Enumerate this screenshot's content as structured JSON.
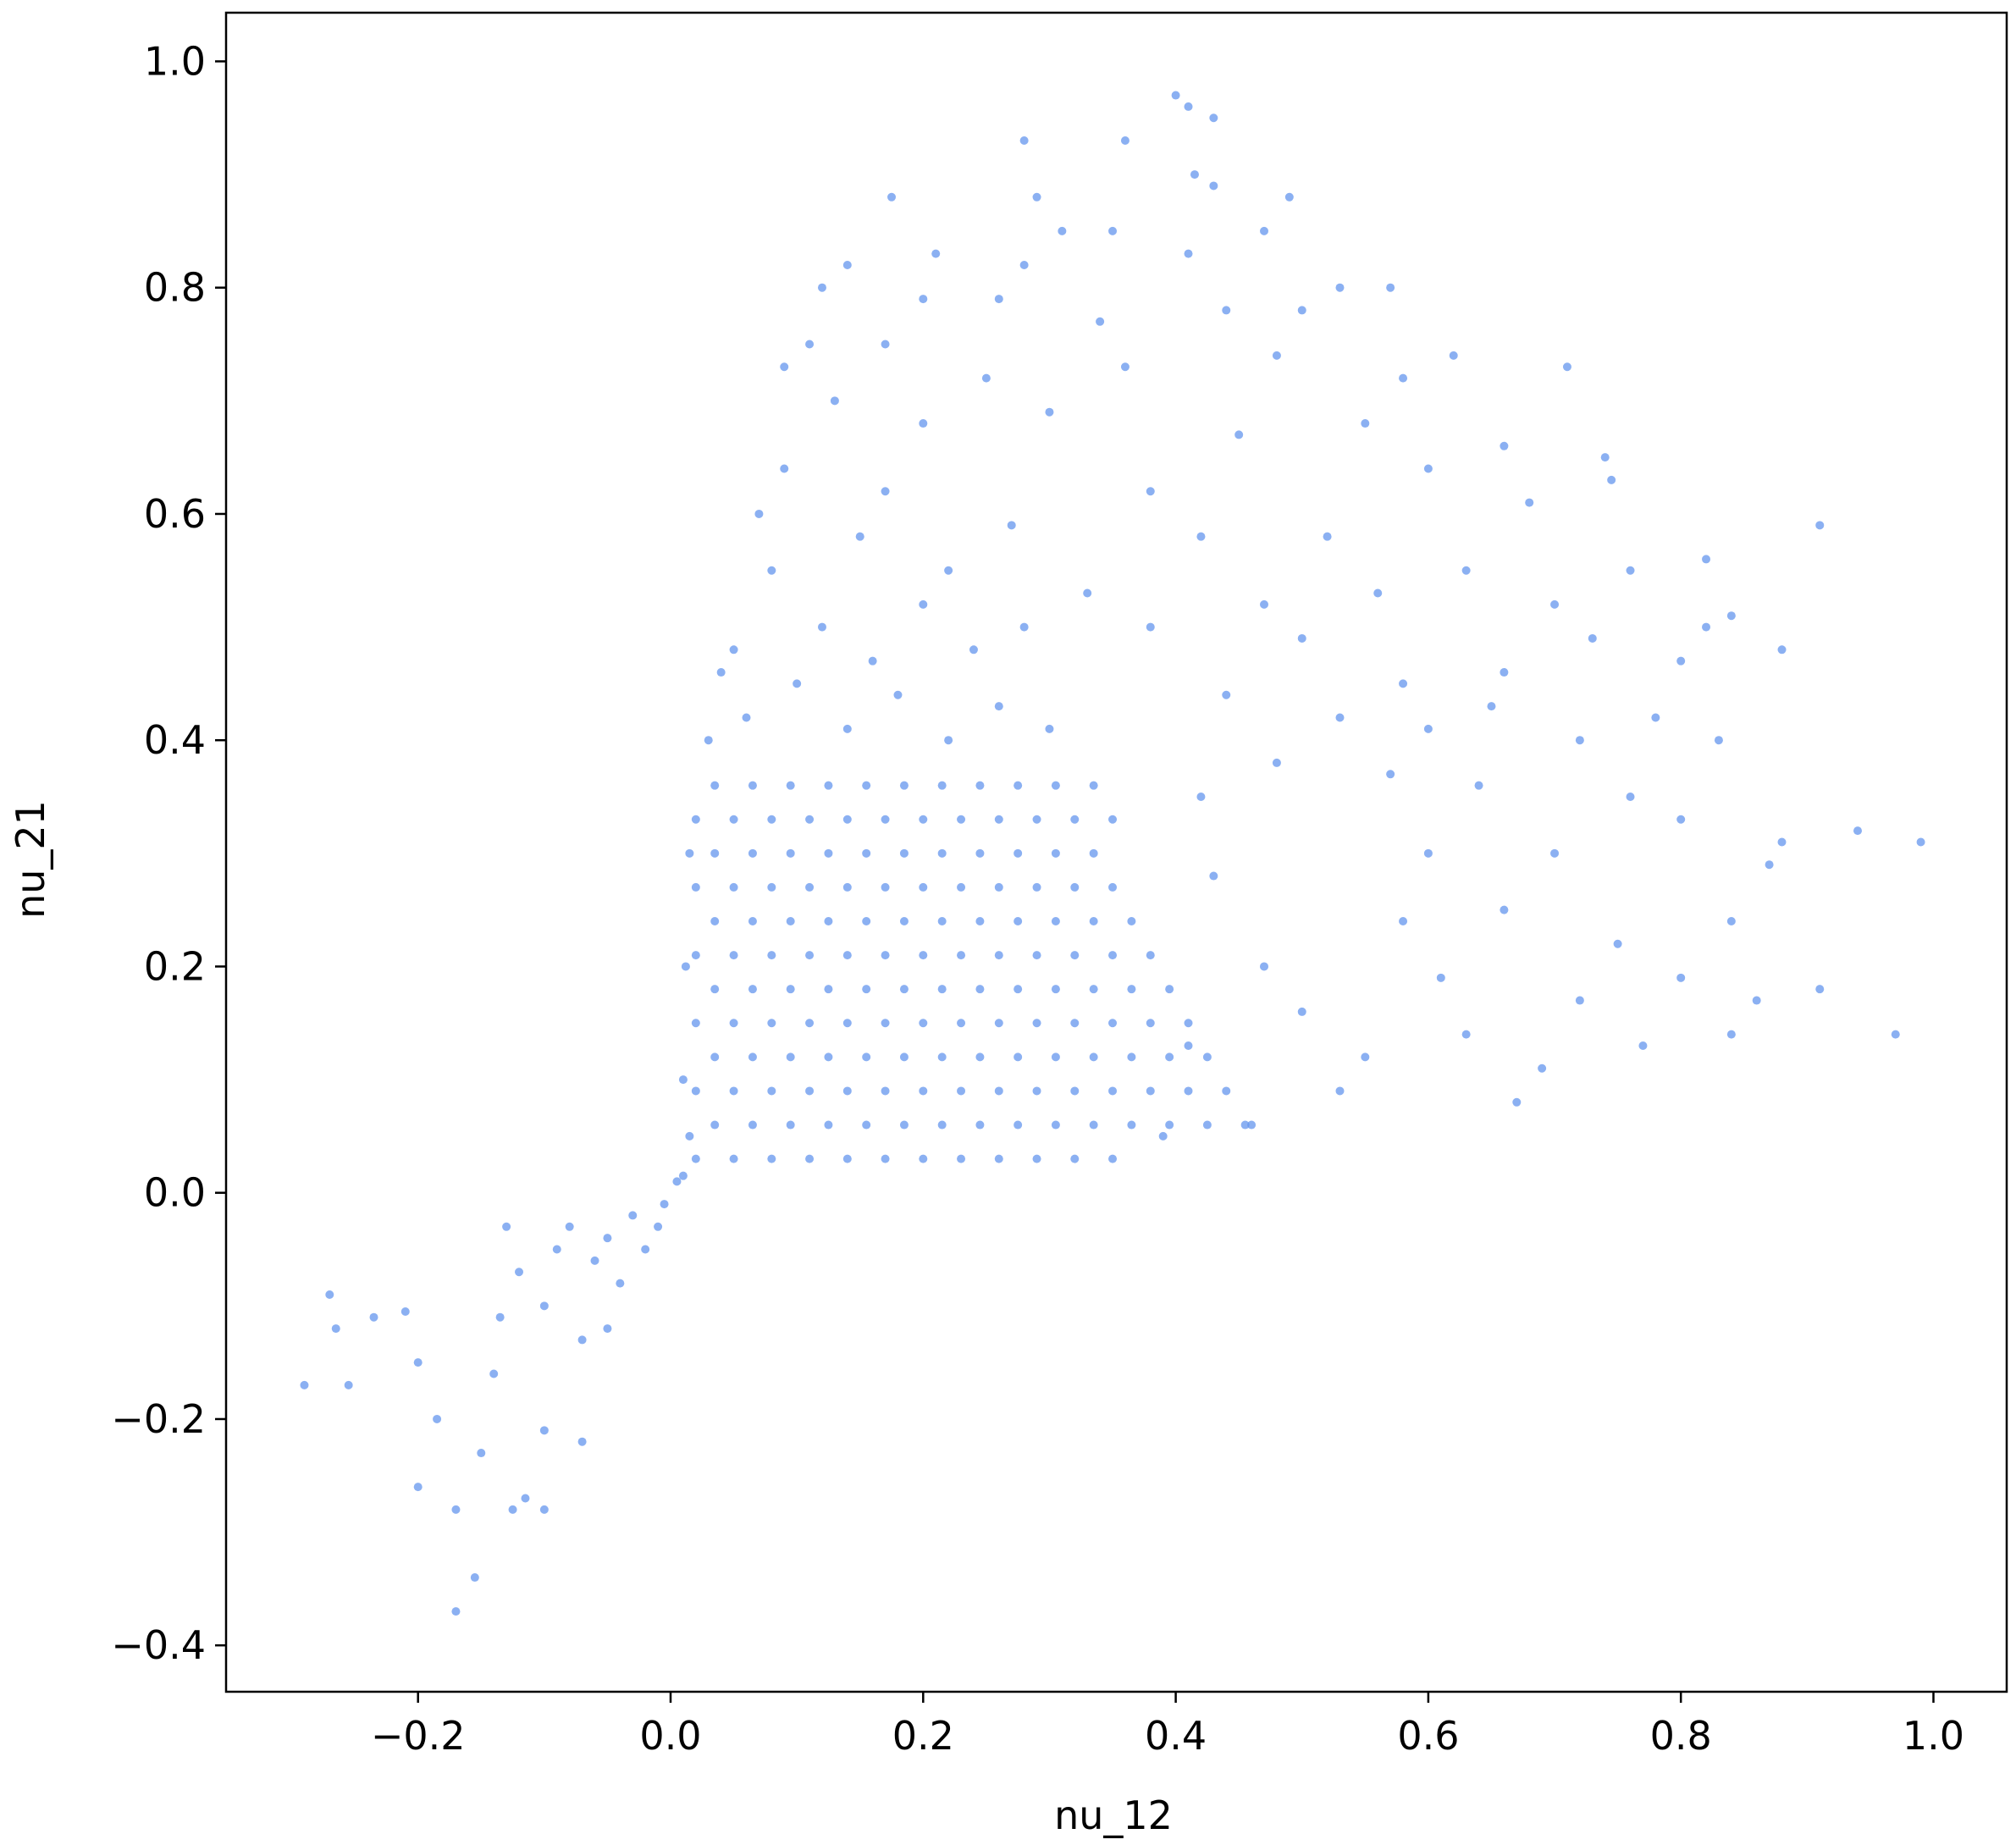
{
  "chart_data": {
    "type": "scatter",
    "x_label": "nu_12",
    "y_label": "nu_21",
    "color": "#6495ed",
    "xlim": [
      -0.352,
      1.058
    ],
    "ylim": [
      -0.441,
      1.043
    ],
    "xticks": [
      {
        "value": -0.2,
        "label": "−0.2"
      },
      {
        "value": 0,
        "label": "0.0"
      },
      {
        "value": 0.2,
        "label": "0.2"
      },
      {
        "value": 0.4,
        "label": "0.4"
      },
      {
        "value": 0.6,
        "label": "0.6"
      },
      {
        "value": 0.8,
        "label": "0.8"
      },
      {
        "value": 1,
        "label": "1.0"
      }
    ],
    "yticks": [
      {
        "value": -0.4,
        "label": "−0.4"
      },
      {
        "value": -0.2,
        "label": "−0.2"
      },
      {
        "value": 0,
        "label": "0.0"
      },
      {
        "value": 0.2,
        "label": "0.2"
      },
      {
        "value": 0.4,
        "label": "0.4"
      },
      {
        "value": 0.6,
        "label": "0.6"
      },
      {
        "value": 0.8,
        "label": "0.8"
      },
      {
        "value": 1,
        "label": "1.0"
      }
    ],
    "grid": false,
    "x": [
      -0.29,
      -0.27,
      -0.265,
      -0.255,
      -0.235,
      -0.21,
      -0.2,
      -0.2,
      -0.185,
      -0.17,
      -0.17,
      -0.155,
      -0.15,
      -0.14,
      -0.135,
      -0.13,
      -0.125,
      -0.12,
      -0.115,
      -0.1,
      -0.1,
      -0.1,
      -0.09,
      -0.08,
      -0.07,
      -0.07,
      -0.06,
      -0.05,
      -0.05,
      -0.04,
      -0.03,
      -0.02,
      -0.01,
      -0.005,
      0.4,
      0.41,
      0.43,
      0.415,
      0.43,
      0.28,
      0.36,
      0.175,
      0.29,
      0.49,
      0.31,
      0.47,
      0.35,
      0.21,
      0.41,
      0.14,
      0.28,
      0.53,
      0.57,
      0.12,
      0.44,
      0.2,
      0.26,
      0.5,
      0.34,
      0.11,
      0.09,
      0.17,
      0.62,
      0.71,
      0.58,
      0.48,
      0.36,
      0.25,
      0.13,
      0.74,
      0.745,
      0.66,
      0.55,
      0.45,
      0.3,
      0.2,
      0.09,
      0.17,
      0.38,
      0.6,
      0.68,
      0.91,
      0.82,
      0.76,
      0.52,
      0.42,
      0.27,
      0.15,
      0.07,
      0.84,
      0.82,
      0.7,
      0.63,
      0.56,
      0.47,
      0.33,
      0.22,
      0.88,
      0.8,
      0.73,
      0.66,
      0.58,
      0.5,
      0.38,
      0.05,
      0.78,
      0.72,
      0.65,
      0.6,
      0.53,
      0.44,
      0.83,
      0.88,
      0.94,
      0.99,
      0.87,
      0.8,
      0.76,
      0.7,
      0.64,
      0.57,
      0.48,
      0.84,
      0.91,
      0.97,
      0.86,
      0.8,
      0.84,
      0.77,
      0.75,
      0.72,
      0.69,
      0.67,
      0.63,
      0.61,
      0.58,
      0.55,
      0.53,
      0.5,
      0.46,
      0.47,
      0.43,
      0.41,
      0.39,
      0.42,
      0.66,
      0.6,
      0.02,
      0.05,
      0.08,
      0.11,
      0.14,
      0.17,
      0.2,
      0.23,
      0.26,
      0.29,
      0.32,
      0.35,
      0.035,
      0.065,
      0.095,
      0.125,
      0.155,
      0.185,
      0.215,
      0.245,
      0.275,
      0.305,
      0.335,
      0.365,
      0.395,
      0.425,
      0.455,
      0.02,
      0.05,
      0.08,
      0.11,
      0.14,
      0.17,
      0.2,
      0.23,
      0.26,
      0.29,
      0.32,
      0.35,
      0.38,
      0.41,
      0.44,
      0.035,
      0.065,
      0.095,
      0.125,
      0.155,
      0.185,
      0.215,
      0.245,
      0.275,
      0.305,
      0.335,
      0.365,
      0.395,
      0.425,
      0.02,
      0.05,
      0.08,
      0.11,
      0.14,
      0.17,
      0.2,
      0.23,
      0.26,
      0.29,
      0.32,
      0.35,
      0.38,
      0.41,
      0.035,
      0.065,
      0.095,
      0.125,
      0.155,
      0.185,
      0.215,
      0.245,
      0.275,
      0.305,
      0.335,
      0.365,
      0.395,
      0.02,
      0.05,
      0.08,
      0.11,
      0.14,
      0.17,
      0.2,
      0.23,
      0.26,
      0.29,
      0.32,
      0.35,
      0.38,
      0.035,
      0.065,
      0.095,
      0.125,
      0.155,
      0.185,
      0.215,
      0.245,
      0.275,
      0.305,
      0.335,
      0.365,
      0.02,
      0.05,
      0.08,
      0.11,
      0.14,
      0.17,
      0.2,
      0.23,
      0.26,
      0.29,
      0.32,
      0.35,
      0.035,
      0.065,
      0.095,
      0.125,
      0.155,
      0.185,
      0.215,
      0.245,
      0.275,
      0.305,
      0.335,
      0.02,
      0.05,
      0.08,
      0.11,
      0.14,
      0.17,
      0.2,
      0.23,
      0.26,
      0.29,
      0.32,
      0.35,
      0.035,
      0.065,
      0.095,
      0.125,
      0.155,
      0.185,
      0.215,
      0.245,
      0.275,
      0.305,
      0.335,
      0.03,
      0.06,
      0.1,
      0.14,
      0.18,
      0.22,
      0.26,
      0.3,
      0.04,
      0.12,
      0.2,
      0.08,
      0.16,
      0.24,
      0.28,
      0.005,
      0.01,
      0.015,
      0.01,
      0.012,
      0.015
    ],
    "values": [
      -0.17,
      -0.09,
      -0.12,
      -0.17,
      -0.11,
      -0.105,
      -0.15,
      -0.26,
      -0.2,
      -0.28,
      -0.37,
      -0.34,
      -0.23,
      -0.16,
      -0.11,
      -0.03,
      -0.28,
      -0.07,
      -0.27,
      -0.28,
      -0.21,
      -0.1,
      -0.05,
      -0.03,
      -0.22,
      -0.13,
      -0.06,
      -0.04,
      -0.12,
      -0.08,
      -0.02,
      -0.05,
      -0.03,
      -0.01,
      0.97,
      0.96,
      0.95,
      0.9,
      0.89,
      0.93,
      0.93,
      0.88,
      0.88,
      0.88,
      0.85,
      0.85,
      0.85,
      0.83,
      0.83,
      0.82,
      0.82,
      0.8,
      0.8,
      0.8,
      0.78,
      0.79,
      0.79,
      0.78,
      0.77,
      0.75,
      0.73,
      0.75,
      0.74,
      0.73,
      0.72,
      0.74,
      0.73,
      0.72,
      0.7,
      0.65,
      0.63,
      0.66,
      0.68,
      0.67,
      0.69,
      0.68,
      0.64,
      0.62,
      0.62,
      0.64,
      0.61,
      0.59,
      0.56,
      0.55,
      0.58,
      0.58,
      0.59,
      0.58,
      0.6,
      0.51,
      0.5,
      0.52,
      0.55,
      0.53,
      0.52,
      0.53,
      0.55,
      0.48,
      0.47,
      0.49,
      0.46,
      0.45,
      0.49,
      0.5,
      0.48,
      0.42,
      0.4,
      0.43,
      0.41,
      0.42,
      0.44,
      0.4,
      0.31,
      0.32,
      0.31,
      0.29,
      0.33,
      0.35,
      0.3,
      0.36,
      0.37,
      0.38,
      0.24,
      0.18,
      0.14,
      0.17,
      0.19,
      0.14,
      0.13,
      0.22,
      0.17,
      0.11,
      0.08,
      0.14,
      0.19,
      0.24,
      0.12,
      0.09,
      0.16,
      0.06,
      0.2,
      0.28,
      0.13,
      0.05,
      0.35,
      0.25,
      0.3,
      0.03,
      0.03,
      0.03,
      0.03,
      0.03,
      0.03,
      0.03,
      0.03,
      0.03,
      0.03,
      0.03,
      0.03,
      0.06,
      0.06,
      0.06,
      0.06,
      0.06,
      0.06,
      0.06,
      0.06,
      0.06,
      0.06,
      0.06,
      0.06,
      0.06,
      0.06,
      0.06,
      0.09,
      0.09,
      0.09,
      0.09,
      0.09,
      0.09,
      0.09,
      0.09,
      0.09,
      0.09,
      0.09,
      0.09,
      0.09,
      0.09,
      0.09,
      0.12,
      0.12,
      0.12,
      0.12,
      0.12,
      0.12,
      0.12,
      0.12,
      0.12,
      0.12,
      0.12,
      0.12,
      0.12,
      0.12,
      0.15,
      0.15,
      0.15,
      0.15,
      0.15,
      0.15,
      0.15,
      0.15,
      0.15,
      0.15,
      0.15,
      0.15,
      0.15,
      0.15,
      0.18,
      0.18,
      0.18,
      0.18,
      0.18,
      0.18,
      0.18,
      0.18,
      0.18,
      0.18,
      0.18,
      0.18,
      0.18,
      0.21,
      0.21,
      0.21,
      0.21,
      0.21,
      0.21,
      0.21,
      0.21,
      0.21,
      0.21,
      0.21,
      0.21,
      0.21,
      0.24,
      0.24,
      0.24,
      0.24,
      0.24,
      0.24,
      0.24,
      0.24,
      0.24,
      0.24,
      0.24,
      0.24,
      0.27,
      0.27,
      0.27,
      0.27,
      0.27,
      0.27,
      0.27,
      0.27,
      0.27,
      0.27,
      0.27,
      0.27,
      0.3,
      0.3,
      0.3,
      0.3,
      0.3,
      0.3,
      0.3,
      0.3,
      0.3,
      0.3,
      0.3,
      0.33,
      0.33,
      0.33,
      0.33,
      0.33,
      0.33,
      0.33,
      0.33,
      0.33,
      0.33,
      0.33,
      0.33,
      0.36,
      0.36,
      0.36,
      0.36,
      0.36,
      0.36,
      0.36,
      0.36,
      0.36,
      0.36,
      0.36,
      0.4,
      0.42,
      0.45,
      0.41,
      0.44,
      0.4,
      0.43,
      0.41,
      0.46,
      0.5,
      0.52,
      0.55,
      0.47,
      0.48,
      0.5,
      0.01,
      0.015,
      0.05,
      0.1,
      0.2,
      0.3
    ]
  }
}
